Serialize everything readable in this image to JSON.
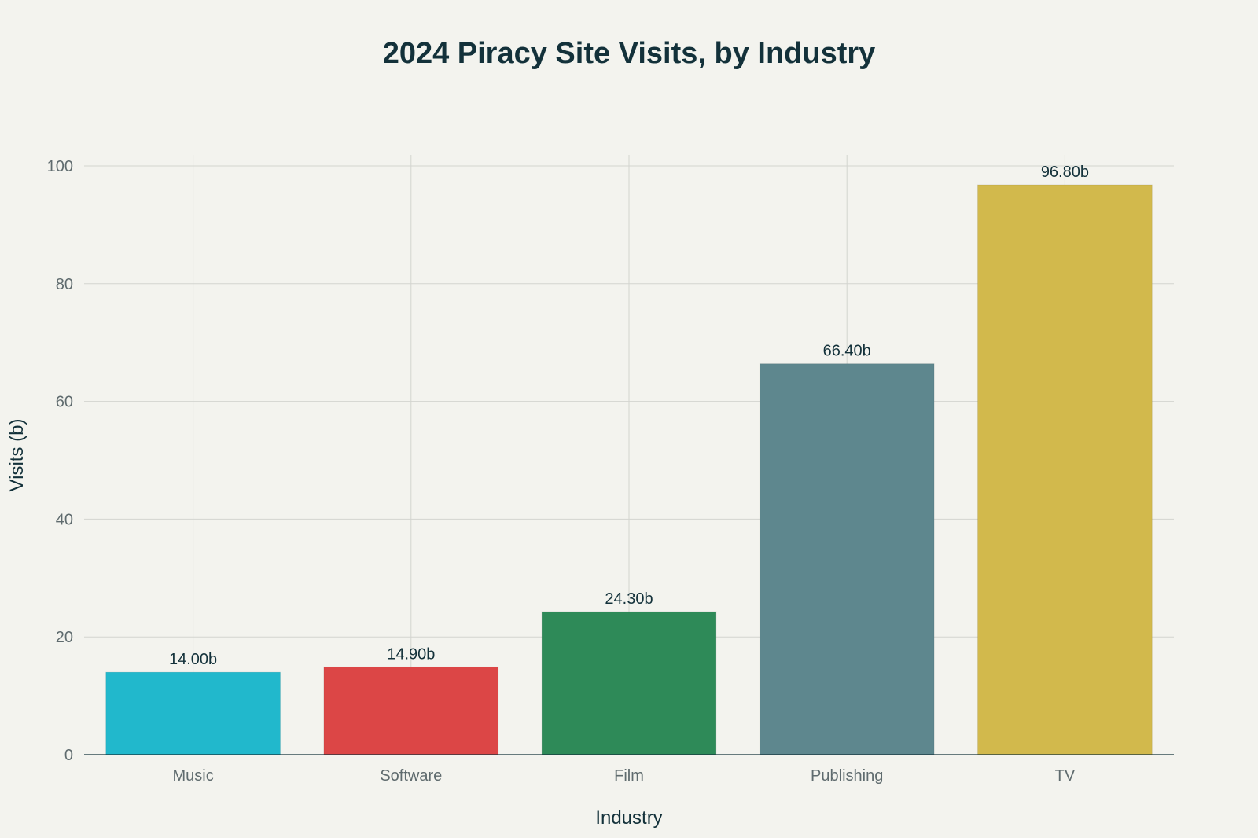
{
  "chart_data": {
    "type": "bar",
    "title": "2024 Piracy Site Visits, by Industry",
    "xlabel": "Industry",
    "ylabel": "Visits (b)",
    "categories": [
      "Music",
      "Software",
      "Film",
      "Publishing",
      "TV"
    ],
    "values": [
      14.0,
      14.9,
      24.3,
      66.4,
      96.8
    ],
    "data_labels": [
      "14.00b",
      "14.90b",
      "24.30b",
      "66.40b",
      "96.80b"
    ],
    "colors": [
      "#21b8cc",
      "#dc4646",
      "#2e8a58",
      "#5e878e",
      "#d2b94c"
    ],
    "ylim": [
      0,
      100
    ],
    "yticks": [
      0,
      20,
      40,
      60,
      80,
      100
    ],
    "grid": true,
    "legend": "none"
  }
}
